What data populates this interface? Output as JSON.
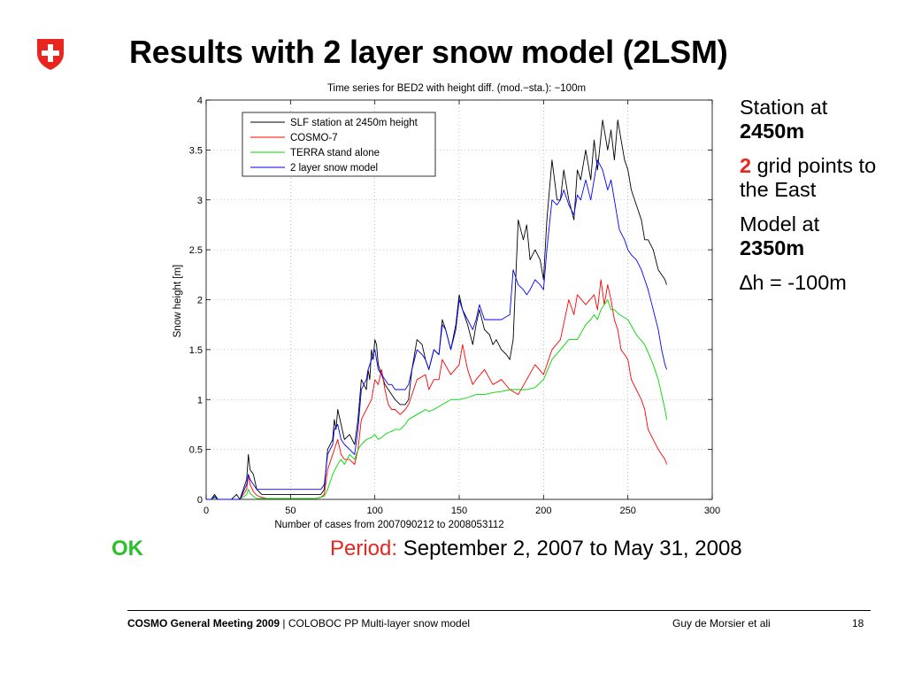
{
  "slide": {
    "title": "Results with 2 layer snow model (2LSM)",
    "logo": "swiss-cross-shield-icon"
  },
  "side_notes": {
    "station_label": "Station at",
    "station_value": "2450m",
    "grid_count": "2",
    "grid_text": "grid points to the East",
    "model_label": "Model at",
    "model_value": "2350m",
    "delta_symbol": "∆",
    "delta_text": "h = -100m"
  },
  "ok_label": "OK",
  "period": {
    "label": "Period:",
    "value": "September 2, 2007 to May 31, 2008"
  },
  "footer": {
    "meeting": "COSMO General Meeting 2009",
    "separator": " | ",
    "subtitle": "COLOBOC PP Multi-layer snow model",
    "author": "Guy de Morsier et ali",
    "page": "18"
  },
  "colors": {
    "slf": "#000000",
    "cosmo": "#ff0000",
    "terra": "#00d800",
    "twolsm": "#0000ff",
    "accent_red": "#e8251f",
    "ok_green": "#2bbf2b"
  },
  "chart_data": {
    "type": "line",
    "title": "Time series for BED2 with height diff. (mod.−sta.): −100m",
    "xlabel": "Number of cases from 2007090212 to 2008053112",
    "ylabel": "Snow height [m]",
    "xlim": [
      0,
      300
    ],
    "ylim": [
      0,
      4
    ],
    "xticks": [
      0,
      50,
      100,
      150,
      200,
      250,
      300
    ],
    "yticks": [
      0,
      0.5,
      1,
      1.5,
      2,
      2.5,
      3,
      3.5,
      4
    ],
    "grid": true,
    "legend_position": "top-left",
    "series": [
      {
        "name": "SLF station at 2450m height",
        "color": "#000000",
        "x": [
          0,
          3,
          5,
          7,
          10,
          15,
          18,
          20,
          24,
          25,
          26,
          28,
          30,
          33,
          36,
          40,
          45,
          50,
          55,
          60,
          65,
          68,
          70,
          72,
          75,
          76,
          77,
          78,
          80,
          82,
          85,
          88,
          90,
          92,
          95,
          96,
          97,
          98,
          99,
          100,
          101,
          102,
          104,
          106,
          108,
          110,
          112,
          115,
          118,
          120,
          122,
          125,
          128,
          130,
          132,
          135,
          138,
          140,
          142,
          145,
          148,
          150,
          152,
          155,
          158,
          160,
          162,
          165,
          168,
          170,
          172,
          175,
          178,
          180,
          182,
          185,
          188,
          190,
          192,
          195,
          198,
          200,
          202,
          205,
          208,
          210,
          212,
          215,
          218,
          220,
          222,
          225,
          228,
          230,
          232,
          235,
          238,
          240,
          242,
          244,
          246,
          248,
          250,
          252,
          255,
          258,
          260,
          262,
          265,
          268,
          270,
          272,
          273
        ],
        "y": [
          0,
          0,
          0.05,
          0,
          0,
          0,
          0.05,
          0,
          0.2,
          0.45,
          0.3,
          0.25,
          0.1,
          0.05,
          0.05,
          0.05,
          0.05,
          0.05,
          0.05,
          0.05,
          0.05,
          0.05,
          0.1,
          0.5,
          0.6,
          0.8,
          0.7,
          0.9,
          0.75,
          0.6,
          0.65,
          0.55,
          0.8,
          1.2,
          1.1,
          1.3,
          1.2,
          1.5,
          1.4,
          1.6,
          1.55,
          1.35,
          1.25,
          1.15,
          1.1,
          1.05,
          1.0,
          0.95,
          0.95,
          1.0,
          1.3,
          1.6,
          1.55,
          1.4,
          1.3,
          1.5,
          1.45,
          1.8,
          1.7,
          1.5,
          1.75,
          2.05,
          1.9,
          1.75,
          1.55,
          1.75,
          1.9,
          1.7,
          1.65,
          1.55,
          1.6,
          1.5,
          1.45,
          1.4,
          1.6,
          2.8,
          2.6,
          2.75,
          2.4,
          2.5,
          2.4,
          2.2,
          2.8,
          3.4,
          3.0,
          3.0,
          3.3,
          3.0,
          2.8,
          3.3,
          3.2,
          3.5,
          3.2,
          3.6,
          3.3,
          3.8,
          3.5,
          3.7,
          3.4,
          3.8,
          3.6,
          3.4,
          3.3,
          3.1,
          2.95,
          2.8,
          2.6,
          2.6,
          2.5,
          2.3,
          2.25,
          2.2,
          2.15
        ]
      },
      {
        "name": "COSMO-7",
        "color": "#ff0000",
        "x": [
          0,
          3,
          5,
          7,
          10,
          15,
          20,
          24,
          25,
          26,
          28,
          30,
          33,
          36,
          40,
          45,
          50,
          55,
          60,
          65,
          68,
          70,
          72,
          75,
          76,
          78,
          80,
          82,
          85,
          88,
          90,
          92,
          95,
          98,
          100,
          102,
          104,
          106,
          108,
          110,
          112,
          115,
          118,
          120,
          125,
          130,
          132,
          135,
          138,
          140,
          145,
          150,
          152,
          155,
          158,
          160,
          165,
          170,
          175,
          180,
          185,
          190,
          195,
          200,
          205,
          210,
          215,
          218,
          220,
          225,
          230,
          232,
          234,
          236,
          238,
          240,
          242,
          244,
          246,
          248,
          250,
          252,
          255,
          258,
          260,
          262,
          265,
          268,
          270,
          272,
          273
        ],
        "y": [
          0,
          0,
          0.02,
          0,
          0,
          0,
          0,
          0.1,
          0.25,
          0.15,
          0.08,
          0.04,
          0.02,
          0.01,
          0.01,
          0.01,
          0.01,
          0.01,
          0.01,
          0.01,
          0.02,
          0.05,
          0.3,
          0.45,
          0.5,
          0.6,
          0.45,
          0.4,
          0.4,
          0.35,
          0.5,
          0.8,
          0.9,
          1.0,
          1.2,
          1.15,
          1.3,
          1.1,
          0.95,
          0.9,
          0.9,
          0.85,
          0.9,
          0.95,
          1.2,
          1.25,
          1.1,
          1.2,
          1.2,
          1.4,
          1.25,
          1.35,
          1.55,
          1.3,
          1.15,
          1.2,
          1.3,
          1.15,
          1.2,
          1.1,
          1.05,
          1.2,
          1.35,
          1.25,
          1.5,
          1.6,
          2.0,
          1.85,
          2.05,
          1.95,
          2.05,
          1.9,
          2.2,
          1.95,
          2.15,
          2.0,
          1.8,
          1.7,
          1.5,
          1.45,
          1.4,
          1.2,
          1.1,
          1.0,
          0.9,
          0.7,
          0.6,
          0.5,
          0.45,
          0.4,
          0.35
        ]
      },
      {
        "name": "TERRA stand alone",
        "color": "#00d800",
        "x": [
          0,
          3,
          5,
          7,
          10,
          15,
          20,
          24,
          25,
          26,
          28,
          30,
          35,
          40,
          45,
          50,
          55,
          60,
          65,
          70,
          72,
          75,
          78,
          80,
          82,
          85,
          88,
          90,
          92,
          95,
          98,
          100,
          102,
          104,
          106,
          108,
          110,
          112,
          115,
          118,
          120,
          125,
          128,
          130,
          132,
          135,
          140,
          145,
          150,
          155,
          160,
          165,
          170,
          175,
          180,
          185,
          190,
          195,
          200,
          205,
          210,
          215,
          220,
          225,
          228,
          230,
          232,
          234,
          236,
          238,
          240,
          242,
          245,
          250,
          255,
          260,
          265,
          268,
          270,
          272,
          273
        ],
        "y": [
          0,
          0,
          0.02,
          0,
          0,
          0,
          0,
          0.05,
          0.1,
          0.06,
          0.03,
          0.01,
          0.01,
          0.01,
          0.01,
          0.01,
          0.01,
          0.01,
          0.01,
          0.03,
          0.1,
          0.25,
          0.35,
          0.4,
          0.35,
          0.45,
          0.4,
          0.5,
          0.55,
          0.6,
          0.62,
          0.65,
          0.6,
          0.62,
          0.65,
          0.67,
          0.68,
          0.7,
          0.7,
          0.75,
          0.8,
          0.85,
          0.88,
          0.9,
          0.88,
          0.9,
          0.95,
          1.0,
          1.0,
          1.02,
          1.05,
          1.05,
          1.07,
          1.08,
          1.1,
          1.1,
          1.1,
          1.12,
          1.2,
          1.4,
          1.5,
          1.6,
          1.6,
          1.75,
          1.8,
          1.85,
          1.8,
          1.9,
          1.95,
          2.0,
          1.9,
          1.9,
          1.85,
          1.8,
          1.65,
          1.55,
          1.35,
          1.2,
          1.05,
          0.9,
          0.8
        ]
      },
      {
        "name": "2 layer snow model",
        "color": "#0000ff",
        "x": [
          0,
          3,
          5,
          7,
          10,
          15,
          20,
          24,
          25,
          26,
          28,
          30,
          33,
          36,
          40,
          45,
          50,
          55,
          60,
          65,
          68,
          70,
          72,
          75,
          76,
          78,
          80,
          82,
          85,
          88,
          90,
          92,
          95,
          96,
          98,
          100,
          102,
          104,
          106,
          108,
          110,
          112,
          115,
          118,
          120,
          122,
          125,
          128,
          130,
          132,
          135,
          138,
          140,
          142,
          145,
          148,
          150,
          152,
          155,
          158,
          160,
          162,
          165,
          170,
          175,
          180,
          182,
          185,
          188,
          190,
          192,
          195,
          198,
          200,
          202,
          205,
          208,
          210,
          212,
          215,
          218,
          220,
          222,
          225,
          228,
          230,
          232,
          235,
          238,
          240,
          242,
          245,
          248,
          250,
          252,
          255,
          258,
          260,
          262,
          265,
          268,
          270,
          272,
          273
        ],
        "y": [
          0,
          0,
          0.03,
          0,
          0,
          0,
          0,
          0.15,
          0.25,
          0.2,
          0.15,
          0.1,
          0.1,
          0.1,
          0.1,
          0.1,
          0.1,
          0.1,
          0.1,
          0.1,
          0.1,
          0.15,
          0.45,
          0.55,
          0.7,
          0.75,
          0.6,
          0.55,
          0.5,
          0.45,
          0.7,
          1.1,
          1.2,
          1.3,
          1.4,
          1.5,
          1.3,
          1.25,
          1.2,
          1.15,
          1.15,
          1.1,
          1.1,
          1.1,
          1.15,
          1.3,
          1.5,
          1.45,
          1.4,
          1.3,
          1.5,
          1.45,
          1.75,
          1.7,
          1.5,
          1.7,
          2.0,
          1.9,
          1.8,
          1.7,
          1.8,
          1.95,
          1.8,
          1.8,
          1.8,
          1.85,
          2.3,
          2.15,
          2.1,
          2.05,
          2.1,
          2.2,
          2.15,
          2.1,
          2.5,
          3.0,
          2.95,
          3.0,
          3.1,
          2.95,
          2.85,
          3.05,
          3.0,
          3.2,
          3.0,
          3.2,
          3.4,
          3.3,
          3.1,
          3.2,
          3.0,
          2.7,
          2.6,
          2.5,
          2.45,
          2.4,
          2.3,
          2.2,
          2.1,
          1.9,
          1.7,
          1.5,
          1.35,
          1.3
        ]
      }
    ]
  }
}
